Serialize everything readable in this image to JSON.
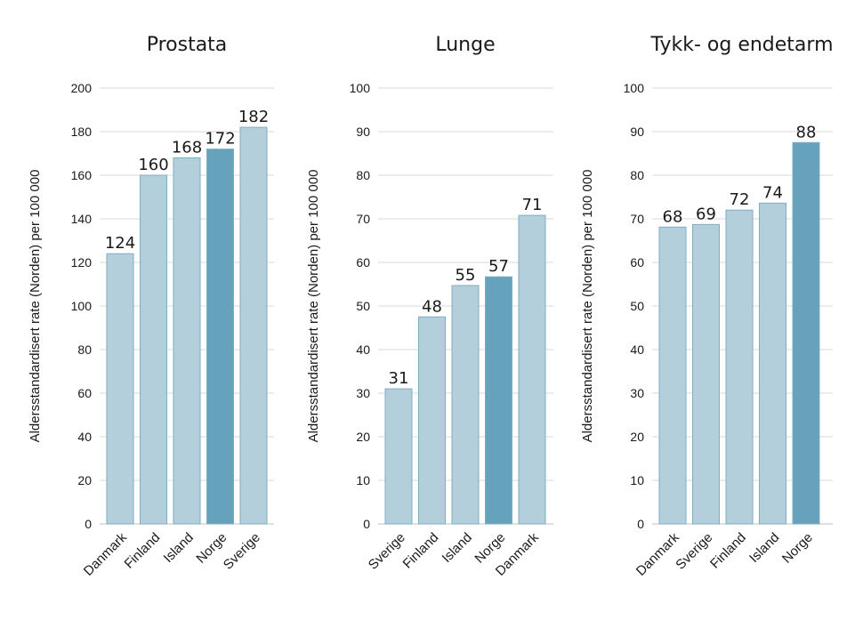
{
  "colors": {
    "normal": "#b3cfdc",
    "highlight": "#66a2bc",
    "stroke": "#7fadc2"
  },
  "chart_data": [
    {
      "type": "bar",
      "title": "Prostata",
      "ylabel": "Aldersstandardisert rate (Norden) per 100 000",
      "ylim": [
        0,
        200
      ],
      "yticks": [
        0,
        20,
        40,
        60,
        80,
        100,
        120,
        140,
        160,
        180,
        200
      ],
      "categories": [
        "Danmark",
        "Finland",
        "Island",
        "Norge",
        "Sverige"
      ],
      "values": [
        124,
        160,
        168,
        172,
        182
      ],
      "labels": [
        "124",
        "160",
        "168",
        "172",
        "182"
      ],
      "highlight": "Norge",
      "grid": true
    },
    {
      "type": "bar",
      "title": "Lunge",
      "ylabel": "Aldersstandardisert rate (Norden) per 100 000",
      "ylim": [
        0,
        100
      ],
      "yticks": [
        0,
        10,
        20,
        30,
        40,
        50,
        60,
        70,
        80,
        90,
        100
      ],
      "categories": [
        "Sverige",
        "Finland",
        "Island",
        "Norge",
        "Danmark"
      ],
      "values": [
        31,
        47.5,
        54.7,
        56.7,
        70.8
      ],
      "labels": [
        "31",
        "48",
        "55",
        "57",
        "71"
      ],
      "highlight": "Norge",
      "grid": true
    },
    {
      "type": "bar",
      "title": "Tykk- og endetarm",
      "ylabel": "Aldersstandardisert rate (Norden) per 100 000",
      "ylim": [
        0,
        100
      ],
      "yticks": [
        0,
        10,
        20,
        30,
        40,
        50,
        60,
        70,
        80,
        90,
        100
      ],
      "categories": [
        "Danmark",
        "Sverige",
        "Finland",
        "Island",
        "Norge"
      ],
      "values": [
        68.1,
        68.7,
        72,
        73.6,
        87.5
      ],
      "labels": [
        "68",
        "69",
        "72",
        "74",
        "88"
      ],
      "highlight": "Norge",
      "grid": true
    }
  ]
}
